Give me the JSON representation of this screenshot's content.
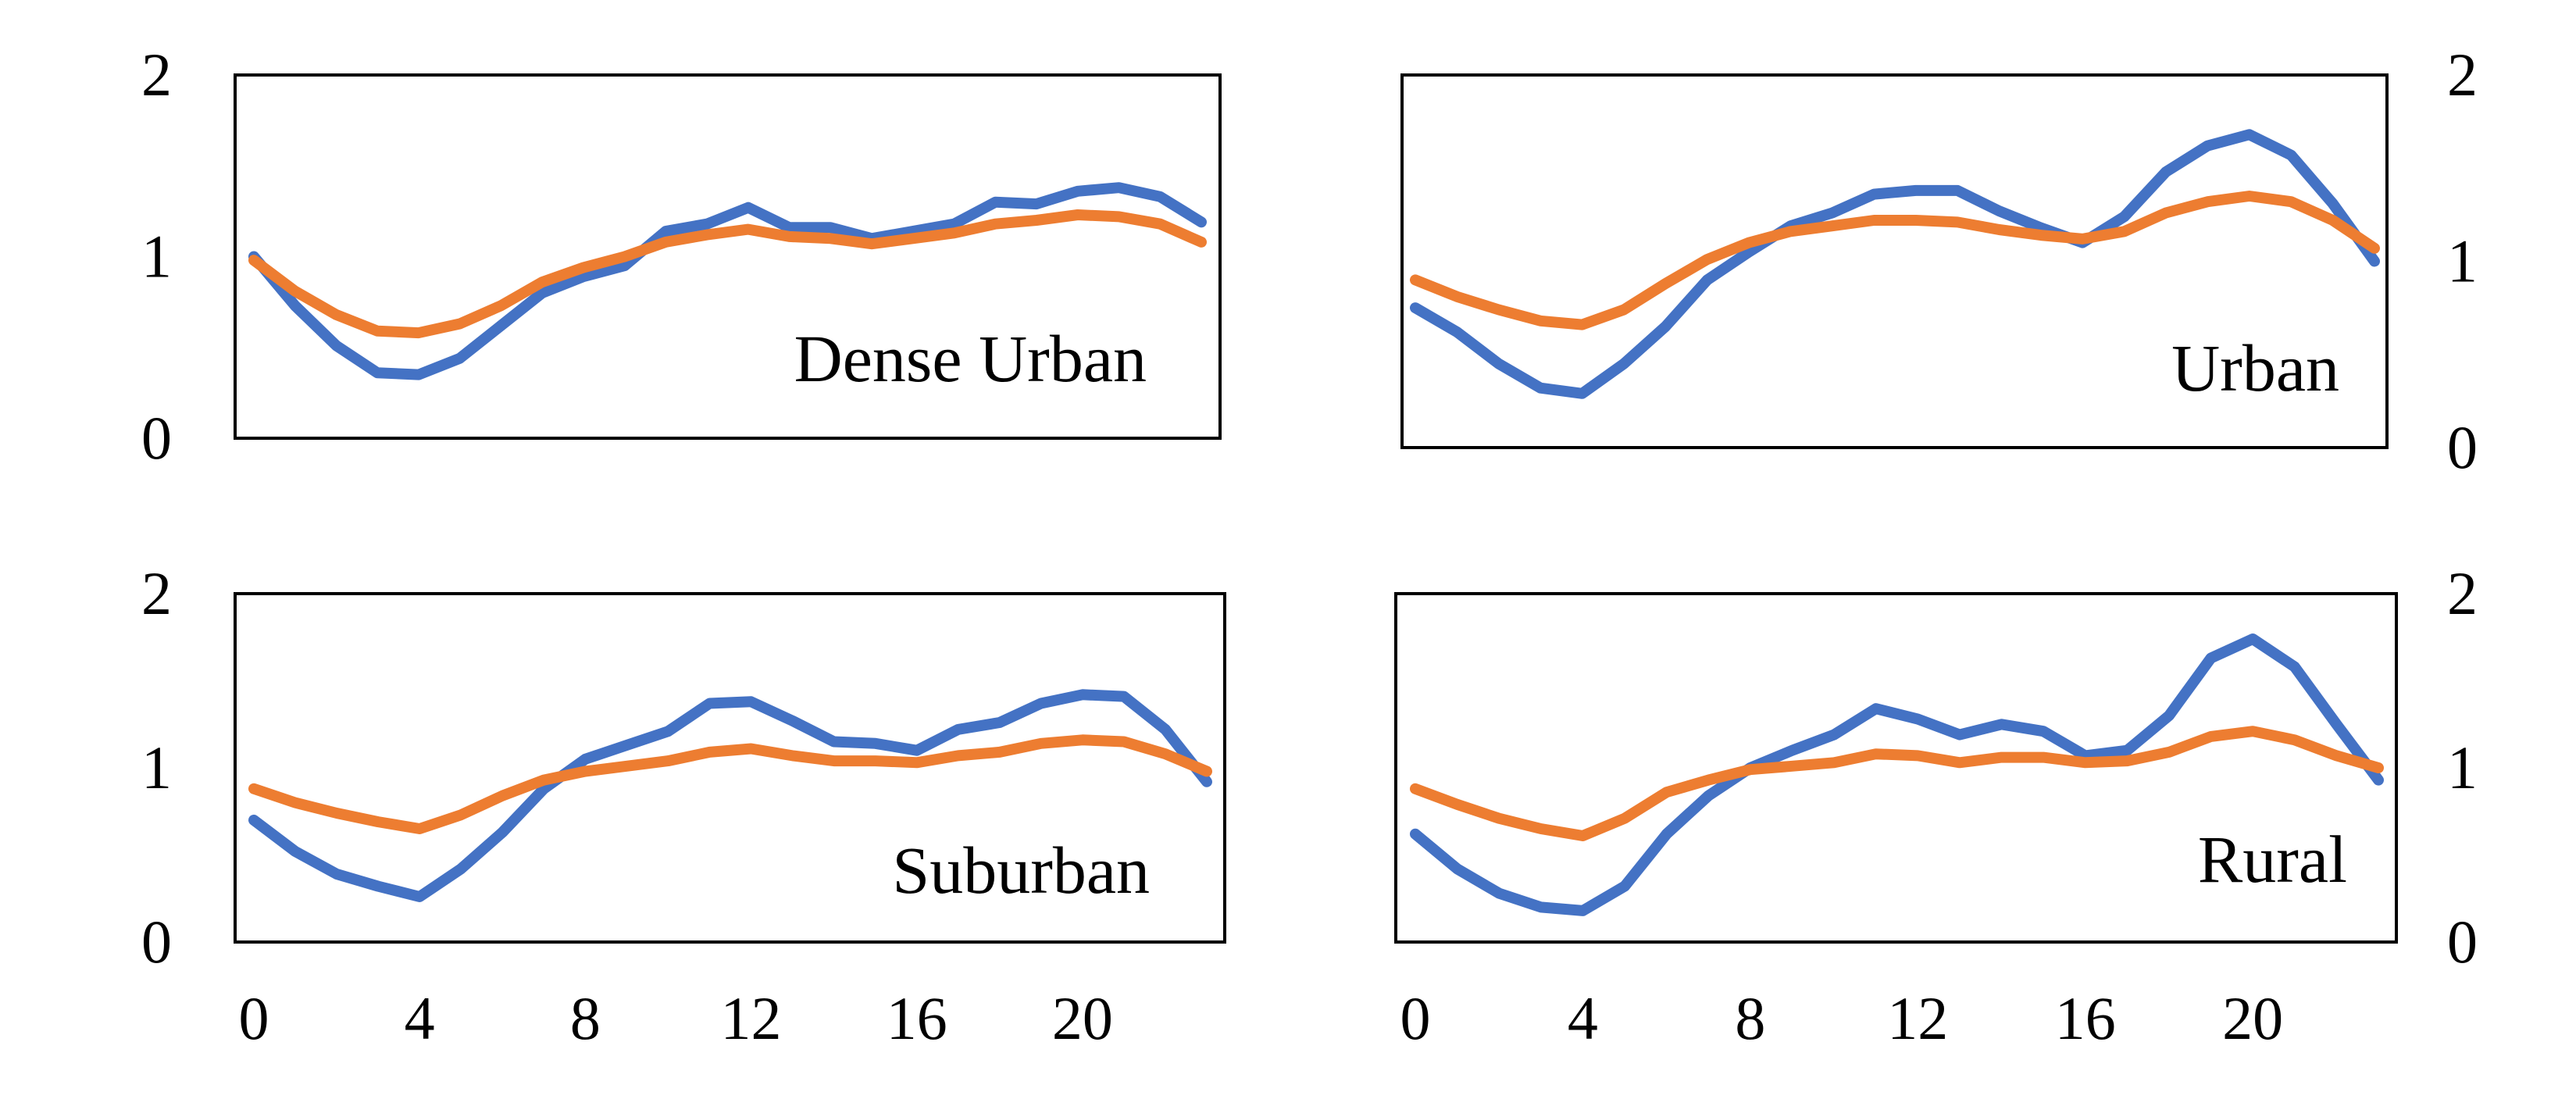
{
  "colors": {
    "series_a": "#4472C4",
    "series_b": "#ED7D31",
    "frame": "#000000"
  },
  "chart_data": [
    {
      "type": "line",
      "label": "Dense Urban",
      "ylim": [
        0,
        2
      ],
      "xlim": [
        0,
        23
      ],
      "yticks": [
        "0",
        "1",
        "2"
      ],
      "xticks": [
        "0",
        "4",
        "8",
        "12",
        "16",
        "20"
      ],
      "show_xticks": false,
      "ytick_side": "left",
      "legend": "none",
      "grid": false,
      "x": [
        0,
        1,
        2,
        3,
        4,
        5,
        6,
        7,
        8,
        9,
        10,
        11,
        12,
        13,
        14,
        15,
        16,
        17,
        18,
        19,
        20,
        21,
        22,
        23
      ],
      "series": [
        {
          "values": [
            1.0,
            0.73,
            0.51,
            0.36,
            0.35,
            0.44,
            0.62,
            0.8,
            0.89,
            0.95,
            1.14,
            1.18,
            1.27,
            1.16,
            1.16,
            1.1,
            1.14,
            1.18,
            1.3,
            1.29,
            1.36,
            1.38,
            1.33,
            1.19
          ]
        },
        {
          "values": [
            0.98,
            0.81,
            0.68,
            0.59,
            0.58,
            0.63,
            0.73,
            0.86,
            0.94,
            1.0,
            1.08,
            1.12,
            1.15,
            1.11,
            1.1,
            1.07,
            1.1,
            1.13,
            1.18,
            1.2,
            1.23,
            1.22,
            1.18,
            1.08
          ]
        }
      ]
    },
    {
      "type": "line",
      "label": "Urban",
      "ylim": [
        0,
        2
      ],
      "xlim": [
        0,
        23
      ],
      "yticks": [
        "0",
        "1",
        "2"
      ],
      "xticks": [
        "0",
        "4",
        "8",
        "12",
        "16",
        "20"
      ],
      "show_xticks": false,
      "ytick_side": "right",
      "legend": "none",
      "grid": false,
      "x": [
        0,
        1,
        2,
        3,
        4,
        5,
        6,
        7,
        8,
        9,
        10,
        11,
        12,
        13,
        14,
        15,
        16,
        17,
        18,
        19,
        20,
        21,
        22,
        23
      ],
      "series": [
        {
          "values": [
            0.75,
            0.62,
            0.45,
            0.32,
            0.29,
            0.45,
            0.65,
            0.9,
            1.05,
            1.19,
            1.26,
            1.36,
            1.38,
            1.38,
            1.27,
            1.18,
            1.1,
            1.24,
            1.48,
            1.62,
            1.68,
            1.57,
            1.31,
            1.0
          ]
        },
        {
          "values": [
            0.9,
            0.81,
            0.74,
            0.68,
            0.66,
            0.74,
            0.88,
            1.01,
            1.1,
            1.16,
            1.19,
            1.22,
            1.22,
            1.21,
            1.17,
            1.14,
            1.12,
            1.16,
            1.26,
            1.32,
            1.35,
            1.32,
            1.22,
            1.07
          ]
        }
      ]
    },
    {
      "type": "line",
      "label": "Suburban",
      "ylim": [
        0,
        2
      ],
      "xlim": [
        0,
        23
      ],
      "yticks": [
        "0",
        "1",
        "2"
      ],
      "xticks": [
        "0",
        "4",
        "8",
        "12",
        "16",
        "20"
      ],
      "show_xticks": true,
      "ytick_side": "left",
      "legend": "none",
      "grid": false,
      "x": [
        0,
        1,
        2,
        3,
        4,
        5,
        6,
        7,
        8,
        9,
        10,
        11,
        12,
        13,
        14,
        15,
        16,
        17,
        18,
        19,
        20,
        21,
        22,
        23
      ],
      "series": [
        {
          "values": [
            0.7,
            0.52,
            0.39,
            0.32,
            0.26,
            0.42,
            0.63,
            0.88,
            1.05,
            1.13,
            1.21,
            1.37,
            1.38,
            1.27,
            1.15,
            1.14,
            1.1,
            1.22,
            1.26,
            1.37,
            1.42,
            1.41,
            1.22,
            0.92
          ]
        },
        {
          "values": [
            0.88,
            0.8,
            0.74,
            0.69,
            0.65,
            0.73,
            0.84,
            0.93,
            0.98,
            1.01,
            1.04,
            1.09,
            1.11,
            1.07,
            1.04,
            1.04,
            1.03,
            1.07,
            1.09,
            1.14,
            1.16,
            1.15,
            1.08,
            0.98
          ]
        }
      ]
    },
    {
      "type": "line",
      "label": "Rural",
      "ylim": [
        0,
        2
      ],
      "xlim": [
        0,
        23
      ],
      "yticks": [
        "0",
        "1",
        "2"
      ],
      "xticks": [
        "0",
        "4",
        "8",
        "12",
        "16",
        "20"
      ],
      "show_xticks": true,
      "ytick_side": "right",
      "legend": "none",
      "grid": false,
      "x": [
        0,
        1,
        2,
        3,
        4,
        5,
        6,
        7,
        8,
        9,
        10,
        11,
        12,
        13,
        14,
        15,
        16,
        17,
        18,
        19,
        20,
        21,
        22,
        23
      ],
      "series": [
        {
          "values": [
            0.62,
            0.42,
            0.28,
            0.2,
            0.18,
            0.32,
            0.62,
            0.84,
            1.0,
            1.1,
            1.19,
            1.34,
            1.28,
            1.19,
            1.25,
            1.21,
            1.07,
            1.1,
            1.3,
            1.63,
            1.74,
            1.58,
            1.25,
            0.93
          ]
        },
        {
          "values": [
            0.88,
            0.79,
            0.71,
            0.65,
            0.61,
            0.71,
            0.86,
            0.93,
            0.99,
            1.01,
            1.03,
            1.08,
            1.07,
            1.03,
            1.06,
            1.06,
            1.03,
            1.04,
            1.09,
            1.18,
            1.21,
            1.16,
            1.07,
            1.0
          ]
        }
      ]
    }
  ]
}
